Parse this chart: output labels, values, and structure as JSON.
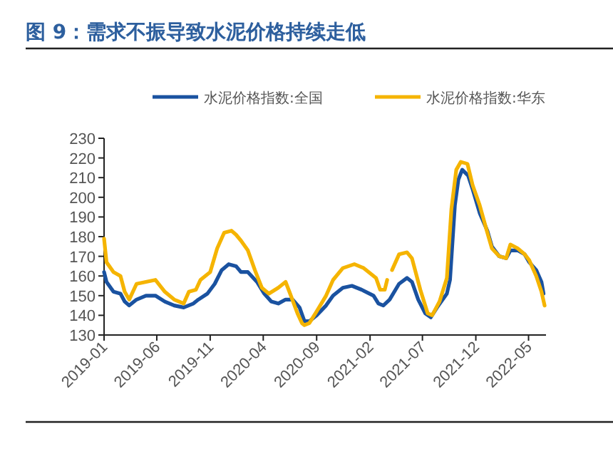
{
  "chart_data": {
    "type": "line",
    "title": "图 9：需求不振导致水泥价格持续走低",
    "series": [
      {
        "name": "水泥价格指数:全国",
        "color": "#1a52a0",
        "x": [
          "2019-01-01",
          "2019-01-08",
          "2019-01-28",
          "2019-02-17",
          "2019-03-01",
          "2019-03-14",
          "2019-04-04",
          "2019-05-01",
          "2019-05-28",
          "2019-06-24",
          "2019-07-21",
          "2019-08-17",
          "2019-09-14",
          "2019-09-28",
          "2019-10-24",
          "2019-11-14",
          "2019-12-04",
          "2019-12-24",
          "2020-01-14",
          "2020-01-28",
          "2020-02-17",
          "2020-03-14",
          "2020-04-04",
          "2020-04-24",
          "2020-05-14",
          "2020-06-04",
          "2020-06-24",
          "2020-07-14",
          "2020-07-28",
          "2020-08-11",
          "2020-09-01",
          "2020-09-28",
          "2020-10-18",
          "2020-11-15",
          "2020-12-11",
          "2021-01-08",
          "2021-02-11",
          "2021-02-25",
          "2021-03-11",
          "2021-03-29",
          "2021-04-25",
          "2021-05-18",
          "2021-06-01",
          "2021-06-19",
          "2021-07-09",
          "2021-07-25",
          "2021-08-12",
          "2021-09-09",
          "2021-09-18",
          "2021-10-02",
          "2021-10-12",
          "2021-10-23",
          "2021-11-09",
          "2021-11-22",
          "2021-12-12",
          "2022-01-03",
          "2022-01-16",
          "2022-02-06",
          "2022-02-26",
          "2022-03-10",
          "2022-03-31",
          "2022-04-20",
          "2022-05-03",
          "2022-05-23",
          "2022-06-07",
          "2022-06-13"
        ],
        "values": [
          162,
          157,
          152,
          151,
          147,
          145,
          148,
          150,
          150,
          147,
          145,
          144,
          146,
          148,
          151,
          156,
          163,
          166,
          165,
          162,
          162,
          157,
          151,
          147,
          146,
          148,
          148,
          144,
          137,
          137,
          140,
          145,
          150,
          154,
          155,
          153,
          150,
          146,
          145,
          148,
          156,
          159,
          157,
          148,
          141,
          139,
          144,
          151,
          158,
          196,
          209,
          214,
          211,
          204,
          192,
          183,
          175,
          170,
          169,
          173,
          173,
          171,
          167,
          163,
          157,
          151
        ]
      },
      {
        "name": "水泥价格指数:华东",
        "color": "#f5b400",
        "x": [
          "2019-01-01",
          "2019-01-08",
          "2019-01-28",
          "2019-02-17",
          "2019-03-01",
          "2019-03-14",
          "2019-04-04",
          "2019-05-01",
          "2019-05-28",
          "2019-06-24",
          "2019-07-21",
          "2019-08-17",
          "2019-09-01",
          "2019-09-21",
          "2019-10-04",
          "2019-11-01",
          "2019-11-21",
          "2019-12-11",
          "2020-01-01",
          "2020-01-14",
          "2020-01-28",
          "2020-02-17",
          "2020-03-08",
          "2020-03-28",
          "2020-04-17",
          "2020-05-14",
          "2020-06-04",
          "2020-06-17",
          "2020-07-08",
          "2020-07-21",
          "2020-07-28",
          "2020-08-11",
          "2020-09-01",
          "2020-09-28",
          "2020-10-18",
          "2020-11-15",
          "2020-12-18",
          "2021-01-14",
          "2021-02-18",
          "2021-03-02",
          "2021-03-15",
          "2021-03-22",
          "2021-03-28",
          "2021-04-05",
          "2021-04-25",
          "2021-05-18",
          "2021-06-01",
          "2021-06-25",
          "2021-07-16",
          "2021-07-29",
          "2021-08-19",
          "2021-09-09",
          "2021-09-22",
          "2021-10-06",
          "2021-10-19",
          "2021-11-07",
          "2021-11-22",
          "2021-12-12",
          "2022-01-03",
          "2022-01-16",
          "2022-02-06",
          "2022-02-26",
          "2022-03-10",
          "2022-03-31",
          "2022-04-20",
          "2022-05-03",
          "2022-05-23",
          "2022-06-07",
          "2022-06-16"
        ],
        "values": [
          179,
          167,
          162,
          160,
          152,
          148,
          156,
          157,
          158,
          152,
          148,
          146,
          152,
          153,
          158,
          162,
          174,
          182,
          183,
          181,
          178,
          173,
          163,
          154,
          151,
          154,
          157,
          151,
          141,
          136,
          135,
          136,
          142,
          150,
          158,
          164,
          166,
          164,
          159,
          153,
          153,
          158,
          null,
          163,
          171,
          172,
          169,
          153,
          141,
          140,
          147,
          159,
          194,
          214,
          218,
          217,
          206,
          196,
          182,
          174,
          170,
          169,
          176,
          174,
          171,
          168,
          160,
          152,
          145
        ]
      }
    ],
    "xlim": [
      "2019-01-01",
      "2022-06-20"
    ],
    "xticks": [
      "2019-01",
      "2019-06",
      "2019-11",
      "2020-04",
      "2020-09",
      "2021-02",
      "2021-07",
      "2021-12",
      "2022-05"
    ],
    "ylim": [
      130,
      230
    ],
    "yticks": [
      130,
      140,
      150,
      160,
      170,
      180,
      190,
      200,
      210,
      220,
      230
    ],
    "legend": "top"
  }
}
